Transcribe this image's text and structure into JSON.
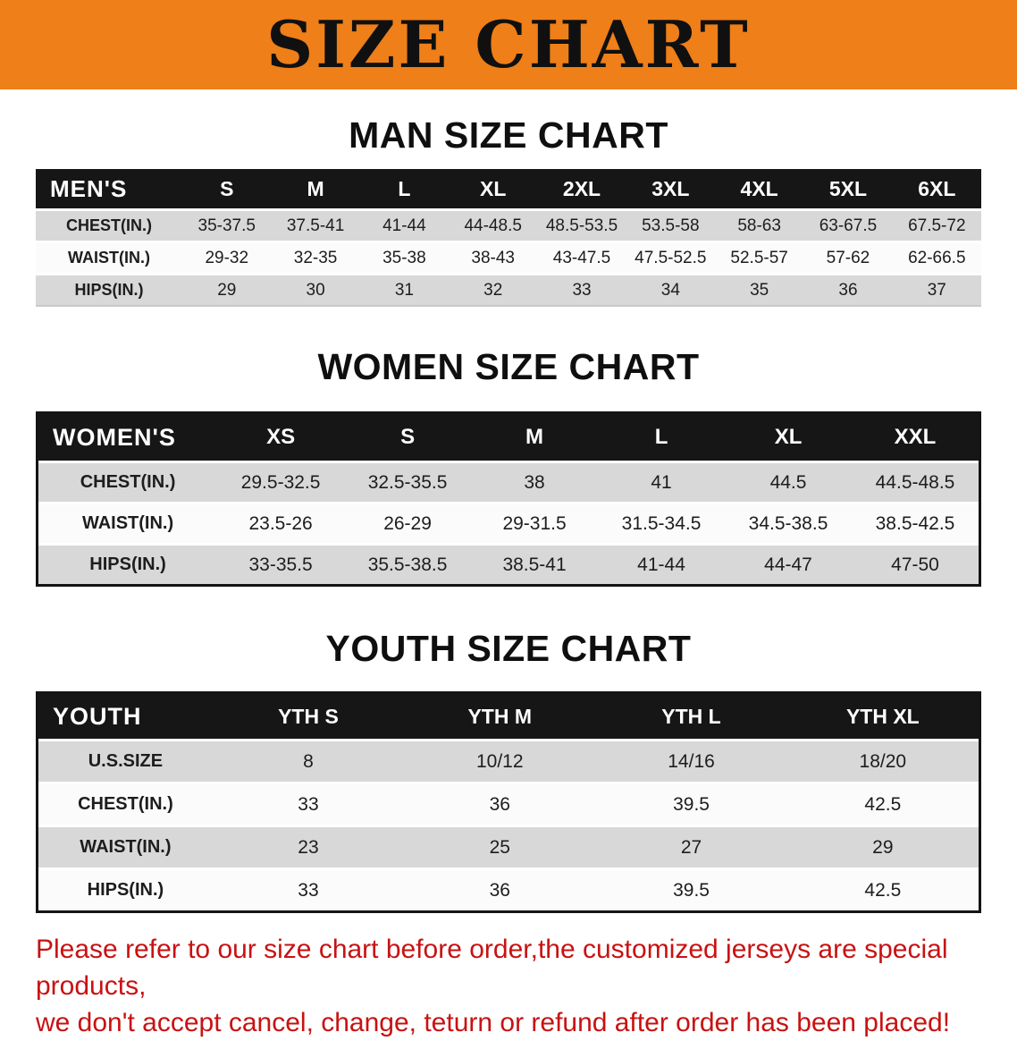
{
  "banner": {
    "title": "SIZE CHART"
  },
  "sections": [
    {
      "heading": "MAN SIZE CHART",
      "table": {
        "header": [
          "MEN'S",
          "S",
          "M",
          "L",
          "XL",
          "2XL",
          "3XL",
          "4XL",
          "5XL",
          "6XL"
        ],
        "rows": [
          [
            "CHEST(IN.)",
            "35-37.5",
            "37.5-41",
            "41-44",
            "44-48.5",
            "48.5-53.5",
            "53.5-58",
            "58-63",
            "63-67.5",
            "67.5-72"
          ],
          [
            "WAIST(IN.)",
            "29-32",
            "32-35",
            "35-38",
            "38-43",
            "43-47.5",
            "47.5-52.5",
            "52.5-57",
            "57-62",
            "62-66.5"
          ],
          [
            "HIPS(IN.)",
            "29",
            "30",
            "31",
            "32",
            "33",
            "34",
            "35",
            "36",
            "37"
          ]
        ]
      }
    },
    {
      "heading": "WOMEN SIZE CHART",
      "table": {
        "header": [
          "WOMEN'S",
          "XS",
          "S",
          "M",
          "L",
          "XL",
          "XXL"
        ],
        "rows": [
          [
            "CHEST(IN.)",
            "29.5-32.5",
            "32.5-35.5",
            "38",
            "41",
            "44.5",
            "44.5-48.5"
          ],
          [
            "WAIST(IN.)",
            "23.5-26",
            "26-29",
            "29-31.5",
            "31.5-34.5",
            "34.5-38.5",
            "38.5-42.5"
          ],
          [
            "HIPS(IN.)",
            "33-35.5",
            "35.5-38.5",
            "38.5-41",
            "41-44",
            "44-47",
            "47-50"
          ]
        ]
      }
    },
    {
      "heading": "YOUTH SIZE CHART",
      "table": {
        "header": [
          "YOUTH",
          "YTH S",
          "YTH M",
          "YTH L",
          "YTH XL"
        ],
        "rows": [
          [
            "U.S.SIZE",
            "8",
            "10/12",
            "14/16",
            "18/20"
          ],
          [
            "CHEST(IN.)",
            "33",
            "36",
            "39.5",
            "42.5"
          ],
          [
            "WAIST(IN.)",
            "23",
            "25",
            "27",
            "29"
          ],
          [
            "HIPS(IN.)",
            "33",
            "36",
            "39.5",
            "42.5"
          ]
        ]
      }
    }
  ],
  "disclaimer": {
    "line1": "Please refer to our size chart before order,the customized jerseys are special products,",
    "line2": "we don't accept cancel, change, teturn or refund after order has been placed!"
  },
  "colors": {
    "banner_orange": "#ef7f18",
    "header_black": "#161616",
    "row_gray": "#d8d8d8",
    "row_white": "#fbfbfb",
    "disclaimer_red": "#c81212"
  }
}
